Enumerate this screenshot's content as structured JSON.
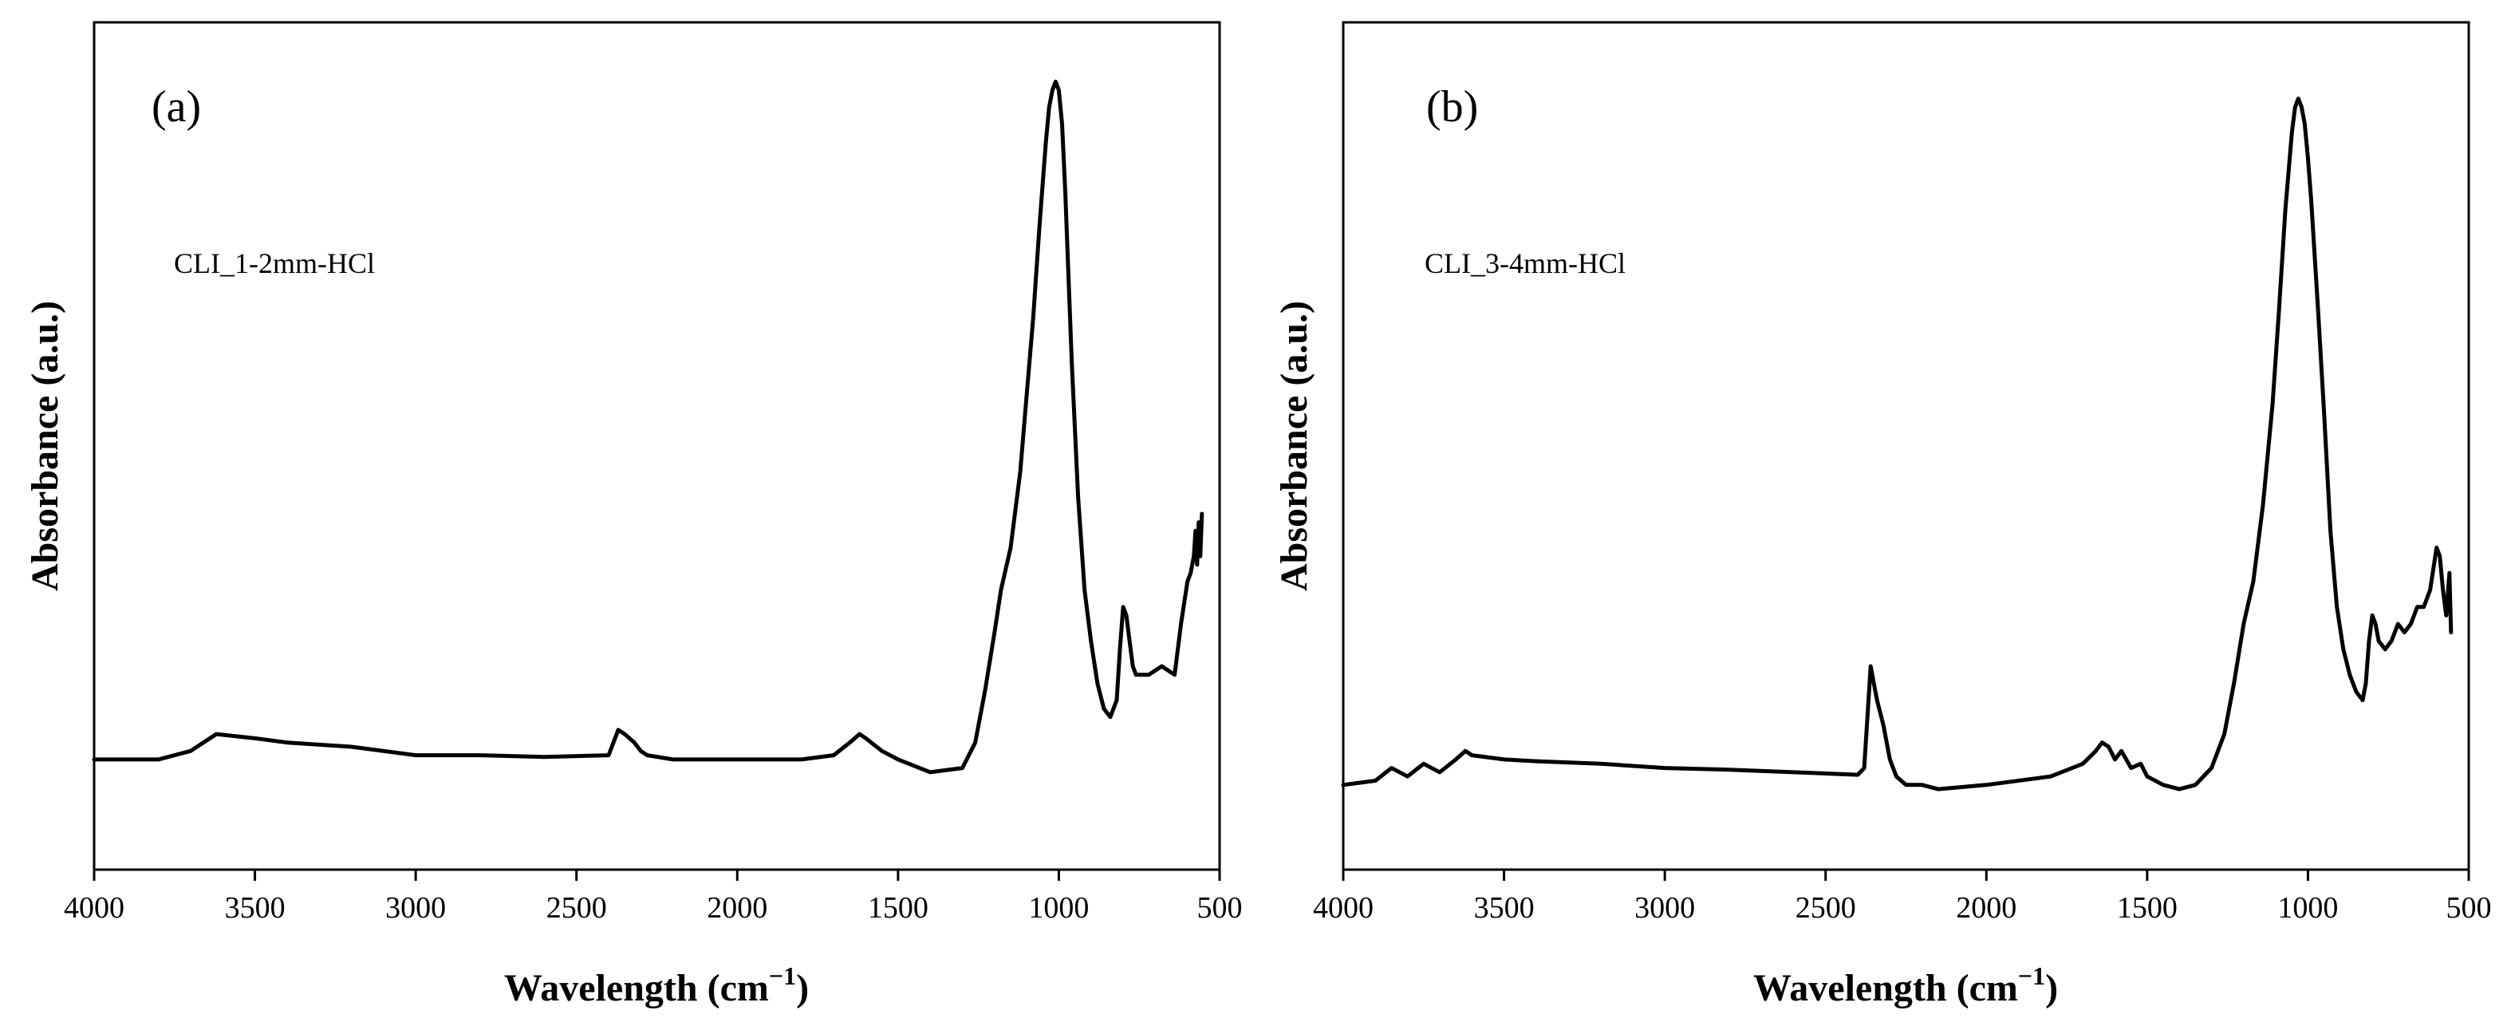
{
  "chart_data": [
    {
      "type": "line",
      "panel_label": "(a)",
      "sample_label": "CLI_1-2mm-HCl",
      "xlabel": "Wavelength (cm",
      "xlabel_sup": "−1",
      "xlabel_end": ")",
      "ylabel": "Absorbance (a.u.)",
      "xlim": [
        4000,
        500
      ],
      "ylim": [
        0,
        1
      ],
      "x_ticks": [
        4000,
        3500,
        3000,
        2500,
        2000,
        1500,
        1000,
        500
      ],
      "x_tick_labels": [
        "4000",
        "3500",
        "3000",
        "2500",
        "2000",
        "1500",
        "1000",
        "500"
      ],
      "series": [
        {
          "name": "CLI_1-2mm-HCl",
          "x": [
            4000,
            3800,
            3700,
            3620,
            3500,
            3400,
            3200,
            3000,
            2800,
            2600,
            2400,
            2370,
            2350,
            2320,
            2300,
            2280,
            2200,
            2000,
            1800,
            1700,
            1650,
            1620,
            1600,
            1550,
            1500,
            1400,
            1300,
            1260,
            1230,
            1200,
            1180,
            1150,
            1120,
            1100,
            1080,
            1060,
            1040,
            1030,
            1020,
            1010,
            1000,
            990,
            980,
            960,
            940,
            920,
            900,
            880,
            860,
            840,
            820,
            810,
            800,
            790,
            780,
            770,
            760,
            740,
            720,
            700,
            680,
            660,
            640,
            620,
            600,
            590,
            580,
            575,
            570,
            565,
            560,
            555
          ],
          "y": [
            0.13,
            0.13,
            0.14,
            0.16,
            0.155,
            0.15,
            0.145,
            0.135,
            0.135,
            0.133,
            0.135,
            0.165,
            0.16,
            0.15,
            0.14,
            0.135,
            0.13,
            0.13,
            0.13,
            0.135,
            0.15,
            0.16,
            0.155,
            0.14,
            0.13,
            0.115,
            0.12,
            0.15,
            0.21,
            0.28,
            0.33,
            0.38,
            0.47,
            0.56,
            0.65,
            0.76,
            0.86,
            0.9,
            0.92,
            0.93,
            0.92,
            0.88,
            0.8,
            0.6,
            0.44,
            0.33,
            0.27,
            0.22,
            0.19,
            0.18,
            0.2,
            0.26,
            0.31,
            0.3,
            0.27,
            0.24,
            0.23,
            0.23,
            0.23,
            0.235,
            0.24,
            0.235,
            0.23,
            0.29,
            0.34,
            0.35,
            0.37,
            0.4,
            0.36,
            0.41,
            0.37,
            0.42
          ]
        }
      ]
    },
    {
      "type": "line",
      "panel_label": "(b)",
      "sample_label": "CLI_3-4mm-HCl",
      "xlabel": "Wavelength (cm",
      "xlabel_sup": "−1",
      "xlabel_end": ")",
      "ylabel": "Absorbance (a.u.)",
      "xlim": [
        4000,
        500
      ],
      "ylim": [
        0,
        1
      ],
      "x_ticks": [
        4000,
        3500,
        3000,
        2500,
        2000,
        1500,
        1000,
        500
      ],
      "x_tick_labels": [
        "4000",
        "3500",
        "3000",
        "2500",
        "2000",
        "1500",
        "1000",
        "500"
      ],
      "series": [
        {
          "name": "CLI_3-4mm-HCl",
          "x": [
            4000,
            3900,
            3850,
            3800,
            3750,
            3700,
            3650,
            3620,
            3600,
            3500,
            3400,
            3200,
            3000,
            2800,
            2600,
            2400,
            2380,
            2360,
            2350,
            2340,
            2320,
            2300,
            2280,
            2250,
            2200,
            2150,
            2000,
            1800,
            1700,
            1660,
            1640,
            1620,
            1600,
            1580,
            1550,
            1520,
            1500,
            1450,
            1400,
            1350,
            1300,
            1260,
            1230,
            1200,
            1170,
            1140,
            1110,
            1090,
            1070,
            1050,
            1040,
            1030,
            1020,
            1010,
            1000,
            990,
            970,
            950,
            930,
            910,
            890,
            870,
            850,
            830,
            820,
            810,
            800,
            790,
            780,
            760,
            740,
            720,
            700,
            680,
            660,
            640,
            620,
            600,
            590,
            580,
            570,
            560,
            555
          ],
          "y": [
            0.1,
            0.105,
            0.12,
            0.11,
            0.125,
            0.115,
            0.13,
            0.14,
            0.135,
            0.13,
            0.128,
            0.125,
            0.12,
            0.118,
            0.115,
            0.112,
            0.12,
            0.24,
            0.22,
            0.2,
            0.17,
            0.13,
            0.11,
            0.1,
            0.1,
            0.095,
            0.1,
            0.11,
            0.125,
            0.14,
            0.15,
            0.145,
            0.13,
            0.14,
            0.12,
            0.125,
            0.11,
            0.1,
            0.095,
            0.1,
            0.12,
            0.16,
            0.22,
            0.29,
            0.34,
            0.43,
            0.55,
            0.66,
            0.78,
            0.87,
            0.9,
            0.91,
            0.9,
            0.88,
            0.84,
            0.79,
            0.67,
            0.54,
            0.4,
            0.31,
            0.26,
            0.23,
            0.21,
            0.2,
            0.22,
            0.27,
            0.3,
            0.29,
            0.27,
            0.26,
            0.27,
            0.29,
            0.28,
            0.29,
            0.31,
            0.31,
            0.33,
            0.38,
            0.37,
            0.33,
            0.3,
            0.35,
            0.28
          ]
        }
      ]
    }
  ]
}
